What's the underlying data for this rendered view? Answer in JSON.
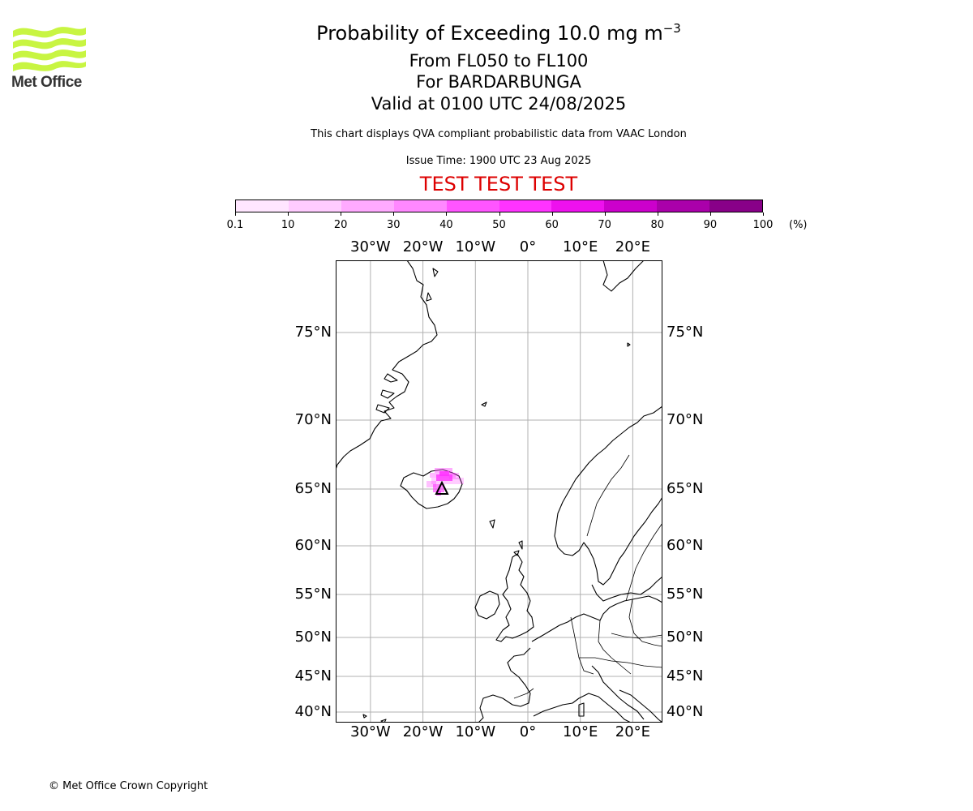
{
  "logo": {
    "name": "Met Office",
    "color": "#c8f542"
  },
  "title": {
    "main": "Probability of Exceeding 10.0 mg m",
    "exponent": "−3"
  },
  "flight_levels": "From FL050 to FL100",
  "volcano": "For BARDARBUNGA",
  "valid_time": "Valid at 0100 UTC 24/08/2025",
  "disclaimer": "This chart displays QVA compliant probabilistic data from VAAC London",
  "issue_time": "Issue Time: 1900 UTC 23 Aug 2025",
  "test_banner": "TEST TEST TEST",
  "colorbar": {
    "ticks": [
      "0.1",
      "10",
      "20",
      "30",
      "40",
      "50",
      "60",
      "70",
      "80",
      "90",
      "100"
    ],
    "units": "(%)",
    "colors": [
      "#ffe6ff",
      "#ffccff",
      "#ffaaff",
      "#ff88ff",
      "#ff55ff",
      "#ff33ff",
      "#ee11ee",
      "#cc00cc",
      "#aa00aa",
      "#880088",
      "#660066"
    ]
  },
  "map": {
    "lon_labels": [
      "30°W",
      "20°W",
      "10°W",
      "0°",
      "10°E",
      "20°E"
    ],
    "lat_labels": [
      "75°N",
      "70°N",
      "65°N",
      "60°N",
      "55°N",
      "50°N",
      "45°N",
      "40°N"
    ],
    "lon_values": [
      -30,
      -20,
      -10,
      0,
      10,
      20
    ],
    "lat_values": [
      75,
      70,
      65,
      60,
      55,
      50,
      45,
      40
    ],
    "volcano_symbol": "triangle-icon",
    "plume_color": "#ff33ff"
  },
  "copyright": "© Met Office Crown Copyright"
}
